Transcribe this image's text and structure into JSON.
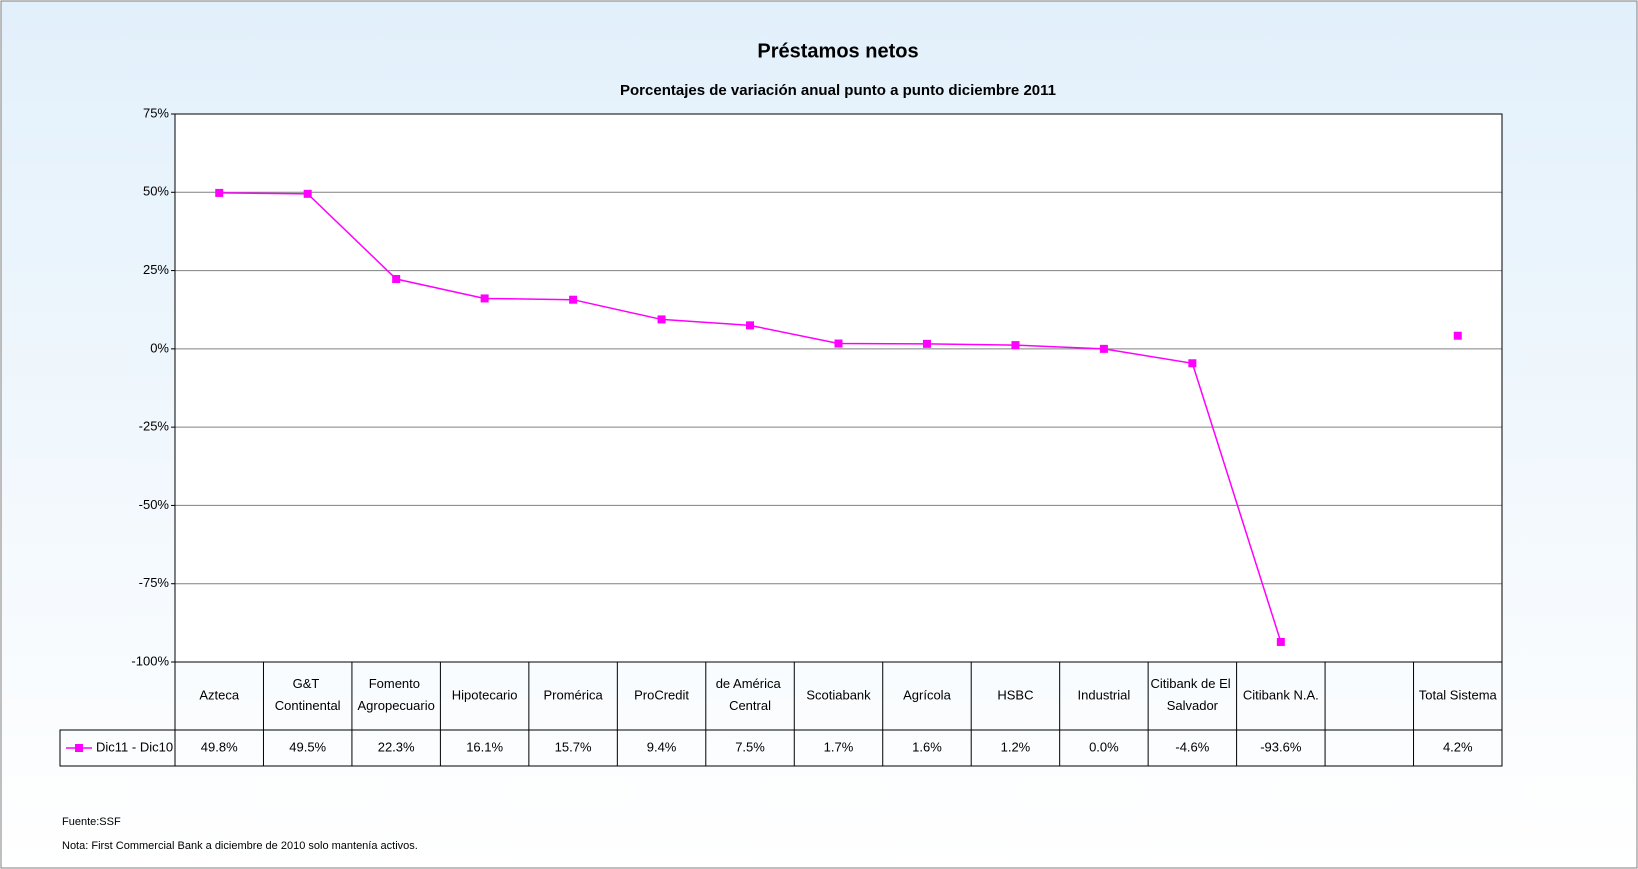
{
  "chart_data": {
    "type": "line",
    "title": "Préstamos netos",
    "subtitle": "Porcentajes de variación anual punto a punto diciembre 2011",
    "categories": [
      "Azteca",
      "G&T Continental",
      "Fomento Agropecuario",
      "Hipotecario",
      "Promérica",
      "ProCredit",
      "de América Central",
      "Scotiabank",
      "Agrícola",
      "HSBC",
      "Industrial",
      "Citibank de El Salvador",
      "Citibank N.A.",
      null,
      "Total Sistema"
    ],
    "series": [
      {
        "name": "Dic11 - Dic10",
        "color": "#ff00ff",
        "values": [
          49.8,
          49.5,
          22.3,
          16.1,
          15.7,
          9.4,
          7.5,
          1.7,
          1.6,
          1.2,
          0.0,
          -4.6,
          -93.6,
          null,
          4.2
        ],
        "value_labels": [
          "49.8%",
          "49.5%",
          "22.3%",
          "16.1%",
          "15.7%",
          "9.4%",
          "7.5%",
          "1.7%",
          "1.6%",
          "1.2%",
          "0.0%",
          "-4.6%",
          "-93.6%",
          null,
          "4.2%"
        ]
      }
    ],
    "ylim": [
      -100,
      75
    ],
    "yticks": [
      {
        "value": -100,
        "label": "-100%"
      },
      {
        "value": -75,
        "label": "-75%"
      },
      {
        "value": -50,
        "label": "-50%"
      },
      {
        "value": -25,
        "label": "-25%"
      },
      {
        "value": 0,
        "label": "0%"
      },
      {
        "value": 25,
        "label": "25%"
      },
      {
        "value": 50,
        "label": "50%"
      },
      {
        "value": 75,
        "label": "75%"
      }
    ],
    "grid": true,
    "notes": [
      "Fuente:SSF",
      "Nota: First Commercial Bank a diciembre de 2010 solo mantenía activos."
    ]
  }
}
